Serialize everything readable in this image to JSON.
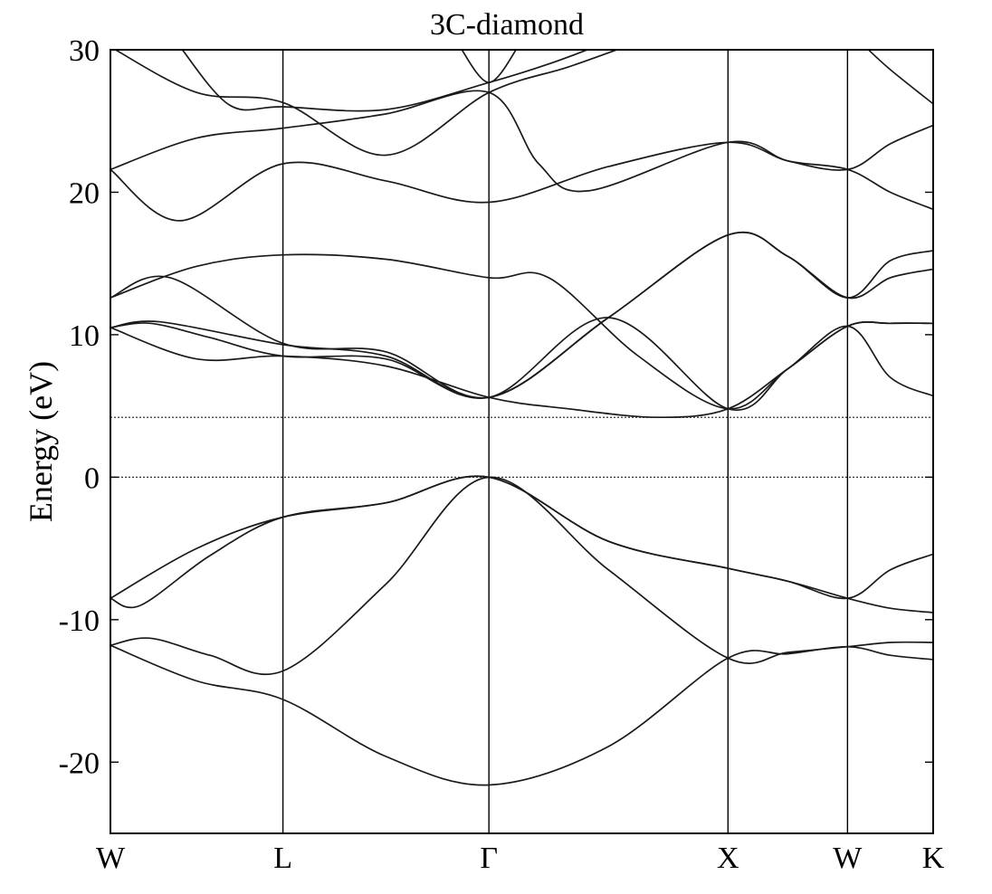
{
  "chart_data": {
    "type": "line",
    "title": "3C-diamond",
    "ylabel": "Energy (eV)",
    "xlabel": "",
    "ylim": [
      -25,
      30
    ],
    "yticks": [
      -20,
      -10,
      0,
      10,
      20,
      30
    ],
    "kpoints": [
      {
        "label": "W",
        "x": 0.0
      },
      {
        "label": "L",
        "x": 0.866
      },
      {
        "label": "Γ",
        "x": 1.9
      },
      {
        "label": "X",
        "x": 3.1
      },
      {
        "label": "W",
        "x": 3.7
      },
      {
        "label": "K",
        "x": 4.13
      }
    ],
    "xlim": [
      0.0,
      4.13
    ],
    "reference_lines": [
      {
        "name": "valence band maximum",
        "y": 0.0
      },
      {
        "name": "conduction band minimum",
        "y": 4.2
      }
    ],
    "bands": [
      {
        "name": "band 1",
        "points": [
          [
            0,
            -11.8
          ],
          [
            0.433,
            -14.3
          ],
          [
            0.866,
            -15.6
          ],
          [
            1.383,
            -19.6
          ],
          [
            1.9,
            -21.6
          ],
          [
            2.5,
            -18.9
          ],
          [
            3.1,
            -12.7
          ],
          [
            3.4,
            -12.4
          ],
          [
            3.7,
            -11.9
          ],
          [
            3.915,
            -12.5
          ],
          [
            4.13,
            -12.8
          ]
        ]
      },
      {
        "name": "band 2",
        "points": [
          [
            0,
            -11.8
          ],
          [
            0.2,
            -11.3
          ],
          [
            0.5,
            -12.5
          ],
          [
            0.866,
            -13.6
          ],
          [
            1.383,
            -7.5
          ],
          [
            1.9,
            0.0
          ],
          [
            2.5,
            -6.5
          ],
          [
            3.1,
            -12.7
          ],
          [
            3.4,
            -12.3
          ],
          [
            3.7,
            -11.9
          ],
          [
            3.915,
            -11.6
          ],
          [
            4.13,
            -11.6
          ]
        ]
      },
      {
        "name": "band 3",
        "points": [
          [
            0,
            -8.5
          ],
          [
            0.15,
            -9.0
          ],
          [
            0.5,
            -5.5
          ],
          [
            0.866,
            -2.8
          ],
          [
            1.383,
            -1.8
          ],
          [
            1.9,
            0.0
          ],
          [
            2.5,
            -4.5
          ],
          [
            3.1,
            -6.4
          ],
          [
            3.4,
            -7.3
          ],
          [
            3.7,
            -8.5
          ],
          [
            3.915,
            -9.2
          ],
          [
            4.13,
            -9.5
          ]
        ]
      },
      {
        "name": "band 4",
        "points": [
          [
            0,
            -8.5
          ],
          [
            0.433,
            -5.0
          ],
          [
            0.866,
            -2.8
          ],
          [
            1.383,
            -1.8
          ],
          [
            1.9,
            0.0
          ],
          [
            2.5,
            -4.5
          ],
          [
            3.1,
            -6.4
          ],
          [
            3.4,
            -7.3
          ],
          [
            3.7,
            -8.5
          ],
          [
            3.915,
            -6.5
          ],
          [
            4.13,
            -5.4
          ]
        ]
      },
      {
        "name": "band 5",
        "points": [
          [
            0,
            10.5
          ],
          [
            0.433,
            8.3
          ],
          [
            0.866,
            8.5
          ],
          [
            1.383,
            7.8
          ],
          [
            1.9,
            5.6
          ],
          [
            2.3,
            4.8
          ],
          [
            2.75,
            4.2
          ],
          [
            3.1,
            4.8
          ],
          [
            3.4,
            7.6
          ],
          [
            3.7,
            10.6
          ],
          [
            3.915,
            7.0
          ],
          [
            4.13,
            5.7
          ]
        ]
      },
      {
        "name": "band 6",
        "points": [
          [
            0,
            10.5
          ],
          [
            0.2,
            10.8
          ],
          [
            0.5,
            9.8
          ],
          [
            0.866,
            8.5
          ],
          [
            1.383,
            8.3
          ],
          [
            1.9,
            5.6
          ],
          [
            2.5,
            11.2
          ],
          [
            3.1,
            4.8
          ],
          [
            3.4,
            7.6
          ],
          [
            3.7,
            10.6
          ],
          [
            3.915,
            10.8
          ],
          [
            4.13,
            10.8
          ]
        ]
      },
      {
        "name": "band 7",
        "points": [
          [
            0,
            10.5
          ],
          [
            0.25,
            10.9
          ],
          [
            0.866,
            9.3
          ],
          [
            1.383,
            8.5
          ],
          [
            1.9,
            5.6
          ],
          [
            2.5,
            11.2
          ],
          [
            3.1,
            17.0
          ],
          [
            3.4,
            15.5
          ],
          [
            3.7,
            12.6
          ],
          [
            3.915,
            14.0
          ],
          [
            4.13,
            14.6
          ]
        ]
      },
      {
        "name": "band 8",
        "points": [
          [
            0,
            12.6
          ],
          [
            0.3,
            14.0
          ],
          [
            0.866,
            9.4
          ],
          [
            1.383,
            8.8
          ],
          [
            1.9,
            5.6
          ],
          [
            2.5,
            11.2
          ],
          [
            3.1,
            17.0
          ],
          [
            3.4,
            15.5
          ],
          [
            3.7,
            12.6
          ],
          [
            3.915,
            15.2
          ],
          [
            4.13,
            15.9
          ]
        ]
      },
      {
        "name": "band 9",
        "points": [
          [
            0,
            12.6
          ],
          [
            0.433,
            14.8
          ],
          [
            0.866,
            15.6
          ],
          [
            1.383,
            15.3
          ],
          [
            1.9,
            14.0
          ],
          [
            2.2,
            14.0
          ],
          [
            2.65,
            8.5
          ],
          [
            3.1,
            4.8
          ],
          [
            3.4,
            7.6
          ],
          [
            3.7,
            10.6
          ],
          [
            3.915,
            10.8
          ],
          [
            4.13,
            10.8
          ]
        ]
      },
      {
        "name": "band 10",
        "points": [
          [
            0,
            21.6
          ],
          [
            0.35,
            18.0
          ],
          [
            0.866,
            22.0
          ],
          [
            1.383,
            20.8
          ],
          [
            1.9,
            19.3
          ],
          [
            2.5,
            21.8
          ],
          [
            3.1,
            23.5
          ],
          [
            3.4,
            22.2
          ],
          [
            3.7,
            21.6
          ],
          [
            3.915,
            20.0
          ],
          [
            4.13,
            18.8
          ]
        ]
      },
      {
        "name": "band 11",
        "points": [
          [
            0,
            21.6
          ],
          [
            0.433,
            23.8
          ],
          [
            0.866,
            24.5
          ],
          [
            1.383,
            25.5
          ],
          [
            1.9,
            27.0
          ],
          [
            2.15,
            22.0
          ],
          [
            2.4,
            20.1
          ],
          [
            3.1,
            23.5
          ],
          [
            3.4,
            22.2
          ],
          [
            3.7,
            21.6
          ],
          [
            3.915,
            23.4
          ],
          [
            4.13,
            24.7
          ]
        ]
      },
      {
        "name": "band 12",
        "points": [
          [
            0,
            30.2
          ],
          [
            0.433,
            27.0
          ],
          [
            0.866,
            26.3
          ],
          [
            1.383,
            22.6
          ],
          [
            1.9,
            27.0
          ],
          [
            2.3,
            28.8
          ],
          [
            2.6,
            30.3
          ]
        ]
      },
      {
        "name": "band 13",
        "points": [
          [
            0.35,
            30.2
          ],
          [
            0.6,
            26.1
          ],
          [
            0.866,
            26.0
          ],
          [
            1.383,
            25.8
          ],
          [
            1.9,
            27.7
          ],
          [
            2.2,
            29.0
          ],
          [
            2.45,
            30.3
          ]
        ]
      },
      {
        "name": "band 14",
        "points": [
          [
            1.75,
            30.3
          ],
          [
            1.9,
            27.7
          ],
          [
            2.05,
            30.3
          ]
        ]
      },
      {
        "name": "band 15",
        "points": [
          [
            3.79,
            30.2
          ],
          [
            3.915,
            28.6
          ],
          [
            4.13,
            26.2
          ]
        ]
      }
    ]
  }
}
